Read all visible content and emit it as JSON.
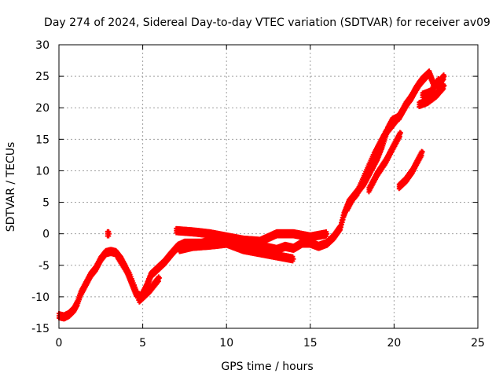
{
  "chart_data": {
    "type": "scatter",
    "title": "Day 274 of 2024, Sidereal Day-to-day VTEC variation (SDTVAR) for receiver av09",
    "xlabel": "GPS time / hours",
    "ylabel": "SDTVAR / TECUs",
    "xlim": [
      0,
      25
    ],
    "ylim": [
      -15,
      30
    ],
    "xticks": [
      0,
      5,
      10,
      15,
      20,
      25
    ],
    "yticks": [
      -15,
      -10,
      -5,
      0,
      5,
      10,
      15,
      20,
      25,
      30
    ],
    "grid": true,
    "marker": "+",
    "colors": {
      "points": "#ff0000",
      "grid": "#a0a0a0",
      "axis": "#000000"
    },
    "series": [
      {
        "name": "SDTVAR",
        "trace": [
          [
            0.0,
            -13.0
          ],
          [
            0.3,
            -13.2
          ],
          [
            0.6,
            -12.8
          ],
          [
            0.9,
            -12.0
          ],
          [
            1.1,
            -11.0
          ],
          [
            1.3,
            -9.5
          ],
          [
            1.6,
            -8.0
          ],
          [
            1.9,
            -6.5
          ],
          [
            2.2,
            -5.5
          ],
          [
            2.5,
            -4.0
          ],
          [
            2.8,
            -3.0
          ],
          [
            3.1,
            -2.8
          ],
          [
            3.4,
            -3.0
          ],
          [
            3.7,
            -4.0
          ],
          [
            4.0,
            -5.5
          ],
          [
            4.3,
            -7.5
          ],
          [
            4.6,
            -9.5
          ],
          [
            4.9,
            -10.0
          ],
          [
            5.2,
            -8.5
          ],
          [
            5.5,
            -6.5
          ],
          [
            5.9,
            -5.5
          ],
          [
            6.3,
            -4.5
          ],
          [
            6.7,
            -3.2
          ],
          [
            7.1,
            -2.0
          ],
          [
            7.5,
            -1.5
          ],
          [
            8.0,
            -1.5
          ],
          [
            8.5,
            -1.5
          ],
          [
            9.0,
            -1.2
          ],
          [
            9.5,
            -1.0
          ],
          [
            10.0,
            -1.0
          ],
          [
            10.5,
            -1.5
          ],
          [
            11.0,
            -1.8
          ],
          [
            11.5,
            -2.2
          ],
          [
            12.0,
            -2.0
          ],
          [
            12.5,
            -2.2
          ],
          [
            13.0,
            -2.5
          ],
          [
            13.5,
            -2.0
          ],
          [
            14.0,
            -2.3
          ],
          [
            14.5,
            -1.5
          ],
          [
            15.0,
            -1.5
          ],
          [
            15.5,
            -2.0
          ],
          [
            16.0,
            -1.5
          ],
          [
            16.4,
            -0.5
          ],
          [
            16.8,
            1.0
          ],
          [
            17.0,
            3.0
          ],
          [
            17.3,
            5.0
          ],
          [
            17.6,
            6.0
          ],
          [
            17.9,
            7.0
          ],
          [
            18.2,
            8.0
          ],
          [
            18.6,
            10.0
          ],
          [
            19.0,
            12.0
          ],
          [
            19.3,
            14.0
          ],
          [
            19.6,
            16.5
          ],
          [
            19.9,
            18.0
          ],
          [
            20.3,
            18.5
          ],
          [
            20.7,
            20.5
          ],
          [
            21.0,
            21.5
          ],
          [
            21.3,
            23.0
          ],
          [
            21.7,
            24.5
          ],
          [
            22.1,
            25.5
          ],
          [
            22.4,
            23.5
          ],
          [
            22.7,
            24.0
          ],
          [
            23.0,
            25.0
          ]
        ],
        "extra_segments": [
          [
            [
              2.9,
              0.0
            ],
            [
              3.0,
              0.0
            ]
          ],
          [
            [
              7.0,
              0.5
            ],
            [
              8.0,
              0.3
            ],
            [
              9.0,
              0.0
            ],
            [
              10.0,
              -0.5
            ],
            [
              11.0,
              -1.0
            ],
            [
              12.0,
              -1.2
            ],
            [
              13.0,
              0.0
            ],
            [
              14.0,
              0.0
            ],
            [
              15.0,
              -0.5
            ],
            [
              16.0,
              0.0
            ]
          ],
          [
            [
              7.2,
              -2.5
            ],
            [
              8.0,
              -2.0
            ],
            [
              9.0,
              -1.8
            ],
            [
              10.0,
              -1.5
            ],
            [
              11.0,
              -2.5
            ],
            [
              12.0,
              -3.0
            ],
            [
              13.0,
              -3.5
            ],
            [
              14.0,
              -4.0
            ]
          ],
          [
            [
              3.5,
              -3.5
            ],
            [
              4.2,
              -6.5
            ],
            [
              4.8,
              -10.5
            ],
            [
              5.4,
              -9.0
            ],
            [
              6.0,
              -7.0
            ]
          ],
          [
            [
              17.2,
              4.0
            ],
            [
              17.5,
              5.5
            ],
            [
              17.8,
              6.5
            ],
            [
              18.3,
              9.5
            ],
            [
              18.8,
              12.5
            ],
            [
              19.2,
              14.5
            ],
            [
              19.5,
              16.0
            ],
            [
              19.8,
              17.0
            ],
            [
              20.1,
              18.0
            ],
            [
              20.4,
              19.0
            ],
            [
              20.8,
              20.8
            ],
            [
              21.1,
              22.0
            ],
            [
              21.5,
              23.8
            ],
            [
              21.9,
              25.0
            ]
          ],
          [
            [
              18.5,
              7.0
            ],
            [
              19.0,
              9.5
            ],
            [
              19.5,
              11.5
            ],
            [
              20.0,
              14.0
            ],
            [
              20.4,
              16.0
            ]
          ],
          [
            [
              20.3,
              7.5
            ],
            [
              20.7,
              8.5
            ],
            [
              21.1,
              10.0
            ],
            [
              21.5,
              12.0
            ],
            [
              21.7,
              13.0
            ]
          ],
          [
            [
              21.5,
              20.5
            ],
            [
              22.0,
              21.0
            ],
            [
              22.5,
              22.0
            ],
            [
              23.0,
              23.5
            ]
          ],
          [
            [
              21.7,
              22.0
            ],
            [
              22.2,
              22.5
            ],
            [
              22.7,
              24.5
            ]
          ]
        ]
      }
    ]
  }
}
